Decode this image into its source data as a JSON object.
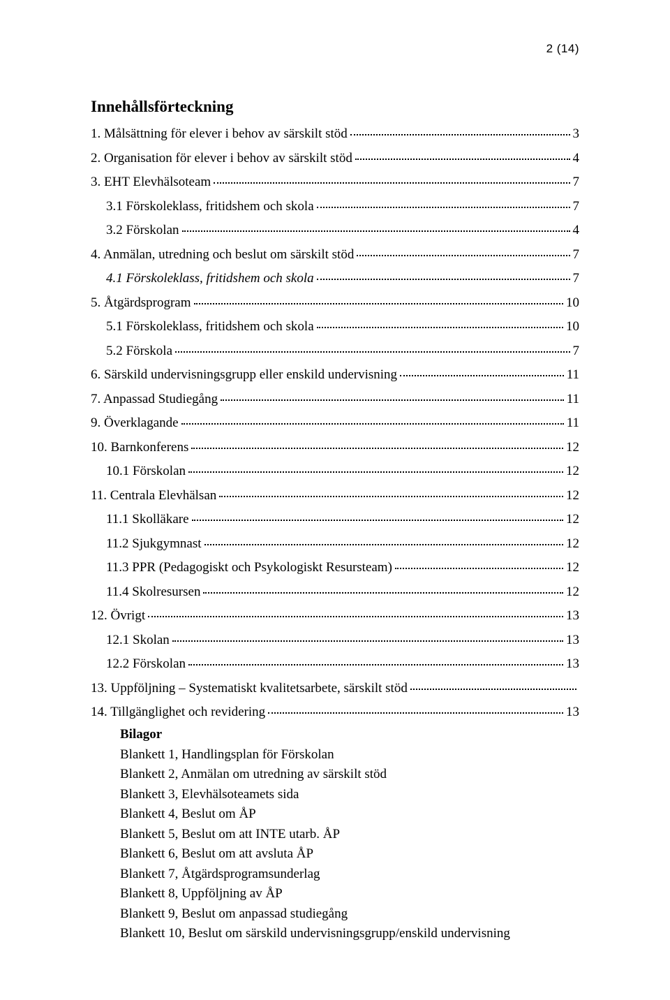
{
  "page_indicator": "2 (14)",
  "toc_title": "Innehållsförteckning",
  "toc": [
    {
      "level": 1,
      "italic": false,
      "text": "1. Målsättning för elever i behov av särskilt stöd",
      "page": "3"
    },
    {
      "level": 1,
      "italic": false,
      "text": "2. Organisation för elever i behov av särskilt stöd",
      "page": "4"
    },
    {
      "level": 1,
      "italic": false,
      "text": "3. EHT Elevhälsoteam",
      "page": "7"
    },
    {
      "level": 2,
      "italic": false,
      "text": "3.1 Förskoleklass, fritidshem och skola",
      "page": "7"
    },
    {
      "level": 2,
      "italic": false,
      "text": "3.2 Förskolan",
      "page": "4"
    },
    {
      "level": 1,
      "italic": false,
      "text": "4. Anmälan, utredning och beslut om särskilt stöd",
      "page": "7"
    },
    {
      "level": 2,
      "italic": true,
      "text": "4.1 Förskoleklass, fritidshem och skola",
      "page": "7"
    },
    {
      "level": 1,
      "italic": false,
      "text": "5. Åtgärdsprogram",
      "page": "10"
    },
    {
      "level": 2,
      "italic": false,
      "text": "5.1 Förskoleklass, fritidshem och skola",
      "page": "10"
    },
    {
      "level": 2,
      "italic": false,
      "text": "5.2 Förskola",
      "page": "7"
    },
    {
      "level": 1,
      "italic": false,
      "text": "6. Särskild undervisningsgrupp eller enskild undervisning",
      "page": "11"
    },
    {
      "level": 1,
      "italic": false,
      "text": "7. Anpassad Studiegång",
      "page": "11"
    },
    {
      "level": 1,
      "italic": false,
      "text": "9. Överklagande",
      "page": "11"
    },
    {
      "level": 1,
      "italic": false,
      "text": "10. Barnkonferens",
      "page": "12"
    },
    {
      "level": 2,
      "italic": false,
      "text": "10.1 Förskolan",
      "page": "12"
    },
    {
      "level": 1,
      "italic": false,
      "text": "11. Centrala Elevhälsan",
      "page": "12"
    },
    {
      "level": 2,
      "italic": false,
      "text": "11.1 Skolläkare",
      "page": "12"
    },
    {
      "level": 2,
      "italic": false,
      "text": "11.2 Sjukgymnast",
      "page": "12"
    },
    {
      "level": 2,
      "italic": false,
      "text": "11.3 PPR (Pedagogiskt och Psykologiskt Resursteam)",
      "page": "12"
    },
    {
      "level": 2,
      "italic": false,
      "text": "11.4 Skolresursen",
      "page": "12"
    },
    {
      "level": 1,
      "italic": false,
      "text": "12. Övrigt",
      "page": "13"
    },
    {
      "level": 2,
      "italic": false,
      "text": "12.1 Skolan",
      "page": "13"
    },
    {
      "level": 2,
      "italic": false,
      "text": "12.2 Förskolan",
      "page": "13"
    },
    {
      "level": 1,
      "italic": false,
      "text": "13. Uppföljning – Systematiskt kvalitetsarbete, särskilt stöd",
      "page": ""
    },
    {
      "level": 1,
      "italic": false,
      "text": "14. Tillgänglighet och revidering",
      "page": "13"
    }
  ],
  "bilagor_title": "Bilagor",
  "bilagor": [
    "Blankett 1, Handlingsplan för Förskolan",
    "Blankett 2, Anmälan om utredning av särskilt stöd",
    "Blankett 3, Elevhälsoteamets sida",
    "Blankett 4, Beslut om ÅP",
    "Blankett 5, Beslut om att INTE utarb. ÅP",
    "Blankett 6, Beslut om att avsluta ÅP",
    "Blankett 7, Åtgärdsprogramsunderlag",
    "Blankett 8, Uppföljning av ÅP",
    "Blankett 9, Beslut om anpassad studiegång",
    "Blankett 10, Beslut om särskild undervisningsgrupp/enskild undervisning"
  ]
}
